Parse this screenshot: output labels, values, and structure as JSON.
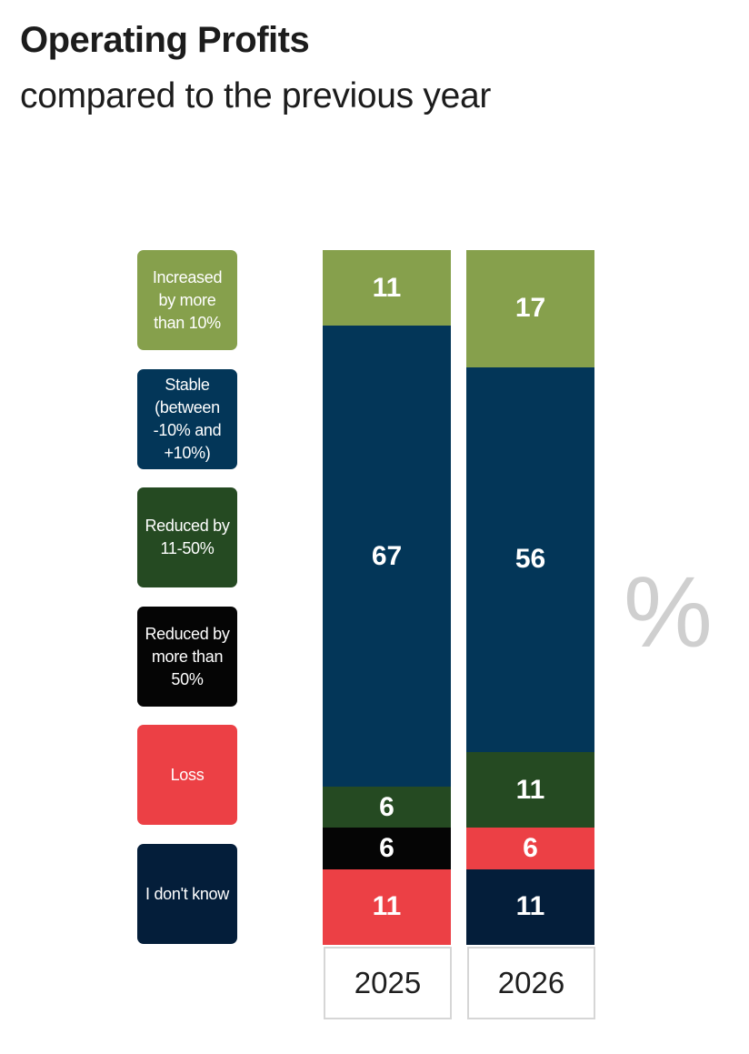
{
  "title": "Operating Profits",
  "subtitle": "compared to the previous year",
  "unit_label": "%",
  "chart_data": {
    "type": "bar",
    "stacked": true,
    "title": "Operating Profits",
    "subtitle": "compared to the previous year",
    "ylabel": "",
    "xlabel": "",
    "categories": [
      "2025",
      "2026"
    ],
    "series": [
      {
        "name": "Increased by more than 10%",
        "color": "#86a04c",
        "values": [
          11,
          17
        ]
      },
      {
        "name": "Stable (between -10% and +10%)",
        "color": "#033658",
        "values": [
          67,
          56
        ]
      },
      {
        "name": "Reduced by 11-50%",
        "color": "#254a22",
        "values": [
          6,
          11
        ]
      },
      {
        "name": "Reduced by more than 50%",
        "color": "#050505",
        "values": [
          6,
          null
        ]
      },
      {
        "name": "Loss",
        "color": "#ec4045",
        "values": [
          11,
          6
        ]
      },
      {
        "name": "I don't know",
        "color": "#041e3a",
        "values": [
          null,
          11
        ]
      }
    ],
    "stack_order": [
      [
        0,
        1,
        2,
        3,
        4
      ],
      [
        0,
        1,
        2,
        4,
        5
      ]
    ],
    "legend_position": "left",
    "grid": false
  }
}
